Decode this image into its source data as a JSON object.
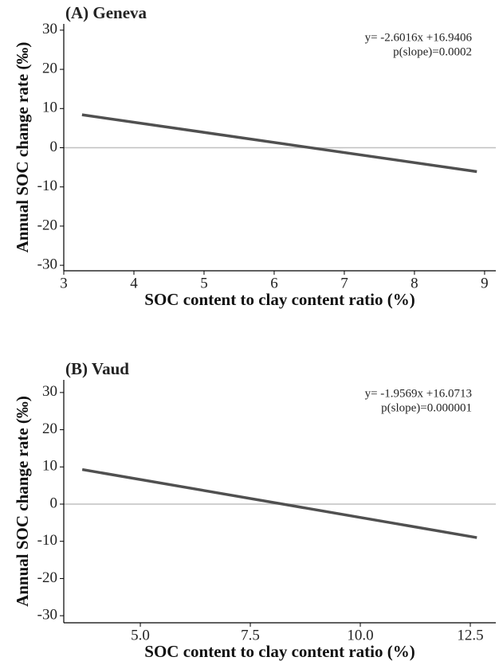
{
  "chart_data": [
    {
      "type": "line",
      "title": "(A) Geneva",
      "x_label": "SOC content to clay content ratio (%)",
      "y_label": "Annual SOC change rate (‰)",
      "annotations": [
        "y= -2.6016x +16.9406",
        "p(slope)=0.0002"
      ],
      "x": [
        3.26,
        8.89
      ],
      "values": [
        8.4,
        -6.1
      ],
      "color": "#505050",
      "reference_line": 0,
      "reference_color": "#c0c0c0",
      "xlim": [
        3,
        9.16
      ],
      "xticks": [
        3,
        4,
        5,
        6,
        7,
        8,
        9
      ],
      "ylim": [
        -31.4,
        31.6
      ],
      "yticks": [
        -30,
        -20,
        -10,
        0,
        10,
        20,
        30
      ]
    },
    {
      "type": "line",
      "title": "(B) Vaud",
      "x_label": "SOC content to clay content ratio (%)",
      "y_label": "Annual SOC change rate (‰)",
      "annotations": [
        "y= -1.9569x +16.0713",
        "p(slope)=0.000001"
      ],
      "x": [
        3.68,
        12.65
      ],
      "values": [
        9.3,
        -9.0
      ],
      "color": "#505050",
      "reference_line": 0,
      "reference_color": "#c0c0c0",
      "xlim": [
        3.26,
        13.08
      ],
      "xticks": [
        {
          "value": 5,
          "label": "5.0"
        },
        {
          "value": 7.5,
          "label": "7.5"
        },
        {
          "value": 10,
          "label": "10.0"
        },
        {
          "value": 12.5,
          "label": "12.5"
        }
      ],
      "ylim": [
        -31.9,
        33.4
      ],
      "yticks": [
        -30,
        -20,
        -10,
        0,
        10,
        20,
        30
      ]
    }
  ]
}
